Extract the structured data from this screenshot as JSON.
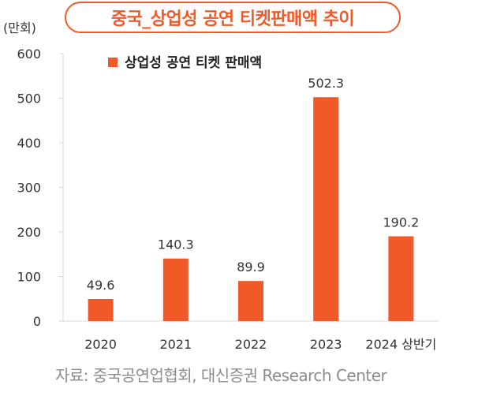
{
  "title": "중국_상업성 공연 티켓판매액 추이",
  "unit_label": "(만회)",
  "source": "자료: 중국공연업협회, 대신증권 Research Center",
  "chart_data": {
    "type": "bar",
    "categories": [
      "2020",
      "2021",
      "2022",
      "2023",
      "2024 상반기"
    ],
    "series": [
      {
        "name": "상업성 공연 티켓 판매액",
        "values": [
          49.6,
          140.3,
          89.9,
          502.3,
          190.2
        ],
        "labels": [
          "49.6",
          "140.3",
          "89.9",
          "502.3",
          "190.2"
        ]
      }
    ],
    "ylim": [
      0,
      600
    ],
    "yticks": [
      0,
      100,
      200,
      300,
      400,
      500,
      600
    ],
    "grid": false,
    "legend": "top-left",
    "bar_color": "#f05a28"
  }
}
